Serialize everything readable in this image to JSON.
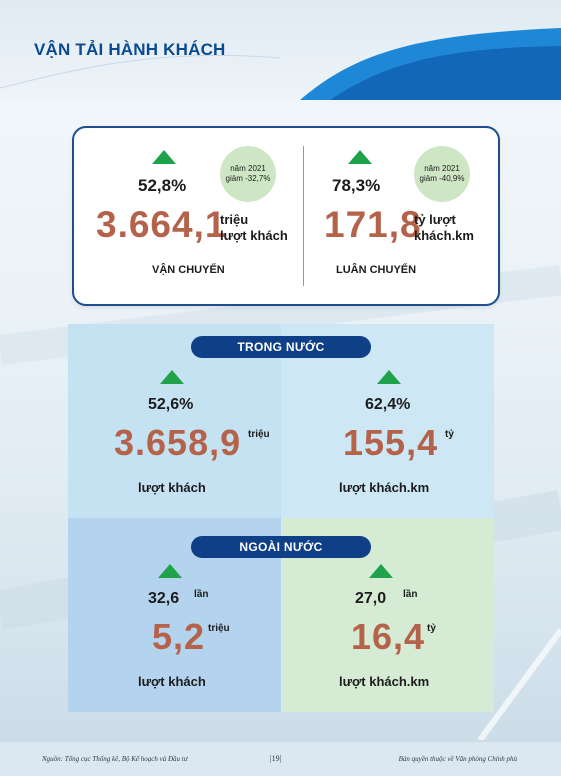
{
  "header": {
    "title": "VẬN TẢI HÀNH KHÁCH"
  },
  "summary": {
    "left": {
      "percent": "52,8%",
      "value": "3.664,1",
      "unit_line1": "triệu",
      "unit_line2": "lượt khách",
      "note_line1": "năm 2021",
      "note_line2": "giảm -32,7%",
      "caption": "VẬN CHUYỂN"
    },
    "right": {
      "percent": "78,3%",
      "value": "171,8",
      "unit_line1": "tỷ lượt",
      "unit_line2": "khách.km",
      "note_line1": "năm 2021",
      "note_line2": "giảm -40,9%",
      "caption": "LUÂN CHUYỂN"
    }
  },
  "domestic": {
    "label": "TRONG NƯỚC",
    "left": {
      "percent": "52,6%",
      "value": "3.658,9",
      "unit": "triệu",
      "label": "lượt khách"
    },
    "right": {
      "percent": "62,4%",
      "value": "155,4",
      "unit": "tỷ",
      "label": "lượt khách.km"
    }
  },
  "international": {
    "label": "NGOÀI NƯỚC",
    "left": {
      "percent": "32,6",
      "times": "lần",
      "value": "5,2",
      "unit": "triệu",
      "label": "lượt khách"
    },
    "right": {
      "percent": "27,0",
      "times": "lần",
      "value": "16,4",
      "unit": "tỷ",
      "label": "lượt khách.km"
    }
  },
  "footer": {
    "source": "Nguồn: Tổng cục Thống kê, Bộ Kế hoạch và Đầu tư",
    "page": "|19|",
    "copyright": "Bản quyền thuộc về Văn phòng Chính phủ"
  },
  "colors": {
    "title": "#0a4a8f",
    "accent_number": "#b5624a",
    "up_arrow": "#1fa24a",
    "pill": "#0f3f86"
  },
  "icons": {
    "increase": "up-triangle-icon"
  }
}
